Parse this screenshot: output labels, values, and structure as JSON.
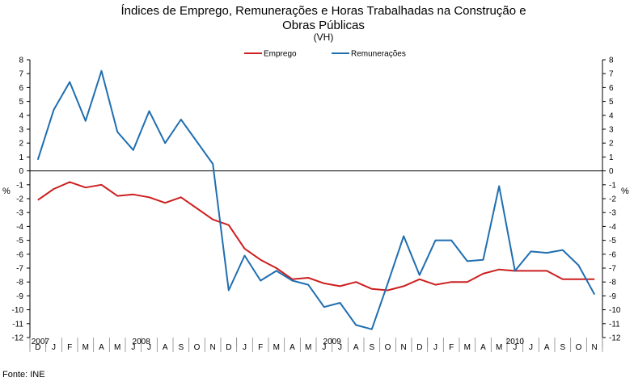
{
  "chart_data": {
    "type": "line",
    "title_line1": "Índices de Emprego, Remunerações e Horas Trabalhadas na Construção e",
    "title_line2": "Obras Públicas",
    "subtitle": "(VH)",
    "ylabel_left": "%",
    "ylabel_right": "%",
    "ylim": [
      -12,
      8
    ],
    "yticks": [
      8,
      7,
      6,
      5,
      4,
      3,
      2,
      1,
      0,
      -1,
      -2,
      -3,
      -4,
      -5,
      -6,
      -7,
      -8,
      -9,
      -10,
      -11,
      -12
    ],
    "months": [
      "D",
      "J",
      "F",
      "M",
      "A",
      "M",
      "J",
      "J",
      "A",
      "S",
      "O",
      "N",
      "D",
      "J",
      "F",
      "M",
      "A",
      "M",
      "J",
      "J",
      "A",
      "S",
      "O",
      "N",
      "D",
      "J",
      "F",
      "M",
      "A",
      "M",
      "J",
      "J",
      "A",
      "S",
      "O",
      "N"
    ],
    "years": [
      {
        "label": "2007",
        "start": 0,
        "end": 0
      },
      {
        "label": "2008",
        "start": 1,
        "end": 12
      },
      {
        "label": "2009",
        "start": 13,
        "end": 24
      },
      {
        "label": "2010",
        "start": 25,
        "end": 35
      }
    ],
    "series": [
      {
        "name": "Emprego",
        "color": "#cc1f1f",
        "values": [
          -2.1,
          -1.3,
          -0.8,
          -1.2,
          -1.0,
          -1.8,
          -1.7,
          -1.9,
          -2.3,
          -1.9,
          -2.7,
          -3.5,
          -3.9,
          -5.6,
          -6.4,
          -7.0,
          -7.8,
          -7.7,
          -8.1,
          -8.3,
          -8.0,
          -8.5,
          -8.6,
          -8.3,
          -7.8,
          -8.2,
          -8.0,
          -8.0,
          -7.4,
          -7.1,
          -7.2,
          -7.2,
          -7.2,
          -7.8,
          -7.8,
          -7.8
        ]
      },
      {
        "name": "Remunerações",
        "color": "#1f6eb0",
        "values": [
          0.8,
          4.4,
          6.4,
          3.6,
          7.2,
          2.8,
          1.5,
          4.3,
          2.0,
          3.7,
          2.1,
          0.5,
          -8.6,
          -6.1,
          -7.9,
          -7.2,
          -7.9,
          -8.2,
          -9.8,
          -9.5,
          -11.1,
          -11.4,
          -8.1,
          -4.7,
          -7.5,
          -5.0,
          -5.0,
          -6.5,
          -6.4,
          -1.1,
          -7.2,
          -5.8,
          -5.9,
          -5.7,
          -6.8,
          -8.9
        ]
      }
    ],
    "source": "Fonte: INE"
  }
}
